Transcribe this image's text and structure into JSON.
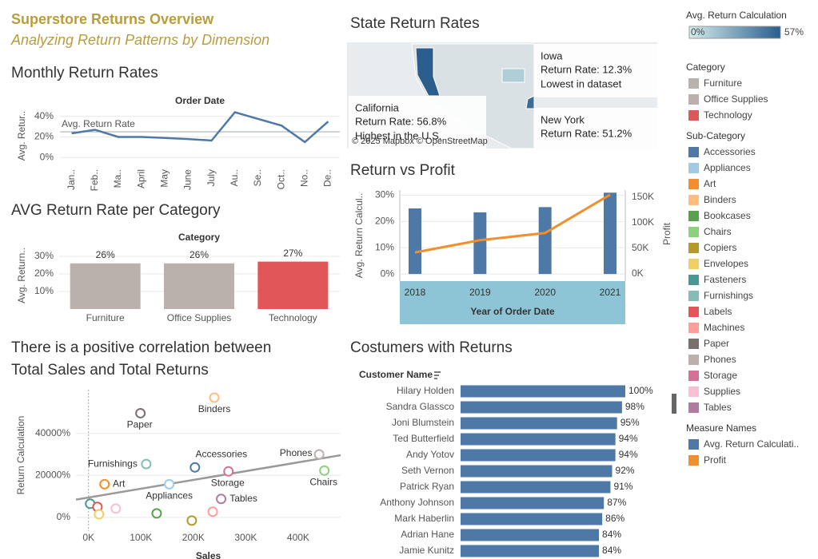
{
  "header": {
    "title": "Superstore Returns Overview",
    "subtitle": "Analyzing Return Patterns by Dimension"
  },
  "chart_data": [
    {
      "type": "line",
      "title": "Monthly Return Rates",
      "x_title": "Order Date",
      "y_title": "Avg. Retur..",
      "categories": [
        "Jan..",
        "Feb..",
        "Ma..",
        "April",
        "May",
        "June",
        "July",
        "Au..",
        "Se..",
        "Oct..",
        "No..",
        "De.."
      ],
      "values": [
        23.5,
        27,
        20,
        20,
        19,
        18,
        16.5,
        44,
        37.5,
        31,
        15,
        35
      ],
      "color": "#4e79a7",
      "ylim": [
        -6,
        46
      ],
      "yticks": [
        {
          "value": 0,
          "label": "0%"
        },
        {
          "value": 20,
          "label": "20%"
        },
        {
          "value": 40,
          "label": "40%"
        }
      ],
      "reference_line": {
        "label": "Avg. Return Rate",
        "value": 25
      },
      "grid": true
    },
    {
      "type": "bar",
      "title": "AVG Return Rate per Category",
      "x_title": "Category",
      "y_title": "Avg. Return..",
      "categories": [
        "Furniture",
        "Office Supplies",
        "Technology"
      ],
      "values": [
        26,
        26,
        27
      ],
      "value_labels": [
        "26%",
        "26%",
        "27%"
      ],
      "ylim": [
        0,
        35
      ],
      "yticks": [
        {
          "value": 10,
          "label": "10%"
        },
        {
          "value": 20,
          "label": "20%"
        },
        {
          "value": 30,
          "label": "30%"
        }
      ],
      "grid": true
    },
    {
      "type": "scatter",
      "title": [
        "There is a positive correlation between",
        "Total Sales and Total Returns"
      ],
      "x_title": "Sales",
      "y_title": "Return Calculation",
      "xlim": [
        -24000,
        481000
      ],
      "ylim": [
        -6500,
        60800
      ],
      "xticks": [
        {
          "value": 0,
          "label": "0K"
        },
        {
          "value": 100000,
          "label": "100K"
        },
        {
          "value": 200000,
          "label": "200K"
        },
        {
          "value": 300000,
          "label": "300K"
        },
        {
          "value": 400000,
          "label": "400K"
        }
      ],
      "yticks": [
        {
          "value": 0,
          "label": "0%"
        },
        {
          "value": 20000,
          "label": "20000%"
        },
        {
          "value": 40000,
          "label": "40000%"
        }
      ],
      "points": [
        {
          "category": "Binders",
          "label": "Binders",
          "x": 240000,
          "y": 57000
        },
        {
          "category": "Paper",
          "label": "Paper",
          "x": 99000,
          "y": 49600
        },
        {
          "category": "Furnishings",
          "label": "Furnishings",
          "x": 110000,
          "y": 25400
        },
        {
          "category": "Accessories",
          "label": "Accessories",
          "x": 203000,
          "y": 23800
        },
        {
          "category": "Phones",
          "label": "Phones",
          "x": 440000,
          "y": 30000
        },
        {
          "category": "Chairs",
          "label": "Chairs",
          "x": 450000,
          "y": 22300
        },
        {
          "category": "Storage",
          "label": "Storage",
          "x": 267000,
          "y": 21900
        },
        {
          "category": "Art",
          "label": "Art",
          "x": 30500,
          "y": 15800
        },
        {
          "category": "Appliances",
          "label": "Appliances",
          "x": 154000,
          "y": 15800
        },
        {
          "category": "Tables",
          "label": "Tables",
          "x": 253000,
          "y": 8800
        },
        {
          "category": "Fasteners",
          "x": 3000,
          "y": 6500
        },
        {
          "category": "Labels",
          "x": 17000,
          "y": 5000
        },
        {
          "category": "Envelopes",
          "x": 20000,
          "y": 1500
        },
        {
          "category": "Supplies",
          "x": 52000,
          "y": 4200
        },
        {
          "category": "Bookcases",
          "x": 130000,
          "y": 1900
        },
        {
          "category": "Machines",
          "x": 237000,
          "y": 2700
        },
        {
          "category": "Copiers",
          "x": 197000,
          "y": -1500
        }
      ],
      "trendline": {
        "x": [
          -24000,
          481000
        ],
        "y": [
          8460,
          29600
        ]
      },
      "grid": true
    },
    {
      "type": "map",
      "title": "State Return Rates",
      "attribution": "© 2025 Mapbox © OpenStreetMap",
      "states": [
        {
          "name": "Iowa",
          "value": 12.3,
          "label": "Return Rate: 12.3%",
          "note": "Lowest in dataset"
        },
        {
          "name": "California",
          "value": 56.8,
          "label": "Return Rate: 56.8%",
          "note": "Highest in the U.S."
        },
        {
          "name": "New York",
          "value": 51.2,
          "label": "Return Rate: 51.2%"
        }
      ]
    },
    {
      "type": "bar_line",
      "title": "Return vs Profit",
      "x_title": "Year of Order Date",
      "y_title": "Avg. Return Calcul..",
      "y2_title": "Profit",
      "categories": [
        "2018",
        "2019",
        "2020",
        "2021"
      ],
      "series": [
        {
          "type": "bar",
          "color": "#4e79a7",
          "values": [
            25,
            23.5,
            25.5,
            31
          ]
        },
        {
          "type": "line",
          "axis": "y2",
          "color": "#f28e2b",
          "values": [
            42000,
            66000,
            80000,
            155000
          ]
        }
      ],
      "ylim": [
        -2.7,
        32
      ],
      "yticks": [
        {
          "value": 0,
          "label": "0%"
        },
        {
          "value": 10,
          "label": "10%"
        },
        {
          "value": 20,
          "label": "20%"
        },
        {
          "value": 30,
          "label": "30%"
        }
      ],
      "y2lim": [
        -14000,
        164000
      ],
      "y2ticks": [
        {
          "value": 0,
          "label": "0K"
        },
        {
          "value": 50000,
          "label": "50K"
        },
        {
          "value": 100000,
          "label": "100K"
        },
        {
          "value": 150000,
          "label": "150K"
        }
      ],
      "grid": true
    },
    {
      "type": "hbar",
      "title": "Costumers with Returns",
      "y_title": "Customer Name",
      "categories": [
        "Hilary Holden",
        "Sandra Glassco",
        "Joni Blumstein",
        "Ted Butterfield",
        "Andy Yotov",
        "Seth Vernon",
        "Patrick Ryan",
        "Anthony Johnson",
        "Mark Haberlin",
        "Adrian Hane",
        "Jamie Kunitz"
      ],
      "values": [
        100,
        98,
        95,
        94,
        94,
        92,
        91,
        87,
        86,
        84,
        84
      ],
      "value_labels": [
        "100%",
        "98%",
        "95%",
        "94%",
        "94%",
        "92%",
        "91%",
        "87%",
        "86%",
        "84%",
        "84%"
      ],
      "color": "#4e79a7",
      "xlim": [
        0,
        100
      ]
    }
  ],
  "legends": [
    {
      "title": "Avg. Return Calculation",
      "colors": [
        "#d4eded",
        "#2a5d8c"
      ],
      "min": {
        "value": 0,
        "label": "0%"
      },
      "max": {
        "value": 57,
        "label": "57%"
      }
    },
    {
      "title": "Category",
      "items": [
        {
          "name": "Furniture",
          "color": "#bab0ac"
        },
        {
          "name": "Office Supplies",
          "color": "#bab0ac"
        },
        {
          "name": "Technology",
          "color": "#e15759"
        }
      ]
    },
    {
      "title": "Sub-Category",
      "items": [
        {
          "name": "Accessories",
          "color": "#4e79a7"
        },
        {
          "name": "Appliances",
          "color": "#a0cbe8"
        },
        {
          "name": "Art",
          "color": "#f28e2b"
        },
        {
          "name": "Binders",
          "color": "#ffbe7d"
        },
        {
          "name": "Bookcases",
          "color": "#59a14f"
        },
        {
          "name": "Chairs",
          "color": "#8cd17d"
        },
        {
          "name": "Copiers",
          "color": "#b6992d"
        },
        {
          "name": "Envelopes",
          "color": "#f1ce63"
        },
        {
          "name": "Fasteners",
          "color": "#499894"
        },
        {
          "name": "Furnishings",
          "color": "#86bcb6"
        },
        {
          "name": "Labels",
          "color": "#e15759"
        },
        {
          "name": "Machines",
          "color": "#ff9d9a"
        },
        {
          "name": "Paper",
          "color": "#79706e"
        },
        {
          "name": "Phones",
          "color": "#bab0ac"
        },
        {
          "name": "Storage",
          "color": "#d37295"
        },
        {
          "name": "Supplies",
          "color": "#fabfd2"
        },
        {
          "name": "Tables",
          "color": "#b07aa1"
        }
      ]
    },
    {
      "title": "Measure Names",
      "items": [
        {
          "name": "Avg. Return Calculati..",
          "color": "#4e79a7"
        },
        {
          "name": "Profit",
          "color": "#f28e2b"
        }
      ]
    }
  ]
}
